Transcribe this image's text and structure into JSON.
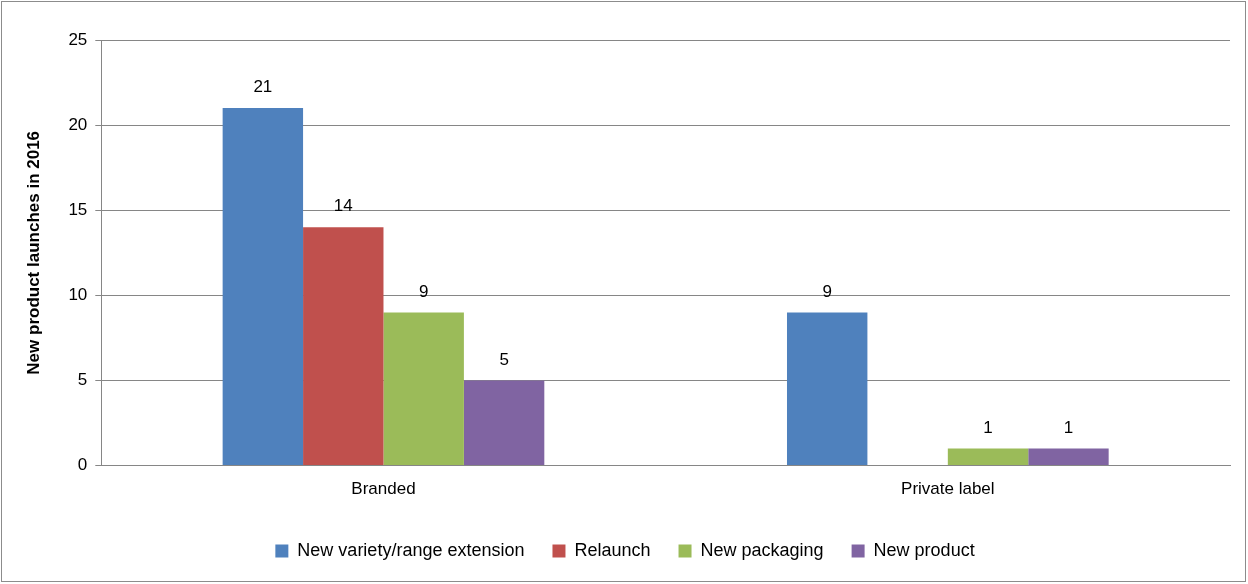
{
  "chart_data": {
    "type": "bar",
    "ylabel": "New product launches in 2016",
    "categories": [
      "Branded",
      "Private label"
    ],
    "series": [
      {
        "name": "New variety/range extension",
        "color": "#4f81bd",
        "values": [
          21,
          9
        ]
      },
      {
        "name": "Relaunch",
        "color": "#c0504d",
        "values": [
          14,
          null
        ]
      },
      {
        "name": "New packaging",
        "color": "#9bbb59",
        "values": [
          9,
          1
        ]
      },
      {
        "name": "New product",
        "color": "#8064a2",
        "values": [
          5,
          1
        ]
      }
    ],
    "ylim": [
      0,
      25
    ],
    "yticks": [
      0,
      5,
      10,
      15,
      20,
      25
    ],
    "grid": "y",
    "legend": "bottom",
    "data_labels": true
  }
}
